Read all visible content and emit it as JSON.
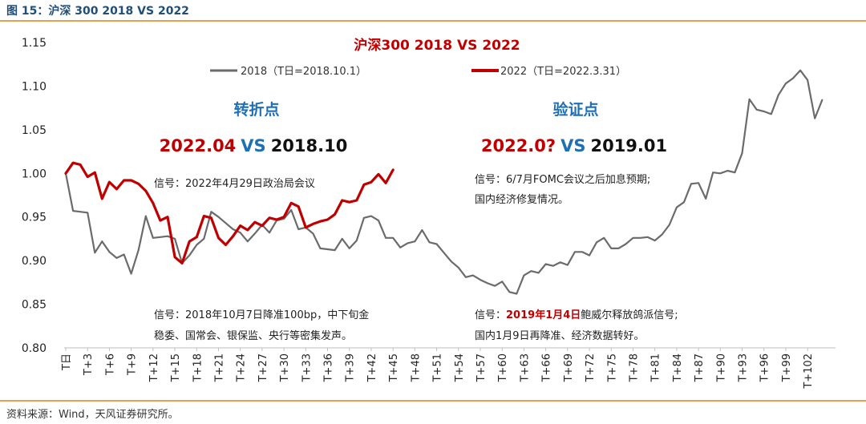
{
  "figure": {
    "title": "图 15：沪深 300 2018 VS 2022",
    "source": "资料来源：Wind，天风证券研究所。"
  },
  "colors": {
    "accent": "#e8a050",
    "s2018": "#6b6b6b",
    "s2022": "#c00000",
    "blue": "#1f6fb5"
  },
  "chart_data": {
    "type": "line",
    "title": "沪深300 2018 VS 2022",
    "xlabel": "",
    "ylabel": "",
    "ylim": [
      0.8,
      1.15
    ],
    "yticks": [
      "1.15",
      "1.10",
      "1.05",
      "1.00",
      "0.95",
      "0.90",
      "0.85",
      "0.80"
    ],
    "xticks": [
      {
        "i": 0,
        "label": "T日"
      },
      {
        "i": 3,
        "label": "T+3"
      },
      {
        "i": 6,
        "label": "T+6"
      },
      {
        "i": 9,
        "label": "T+9"
      },
      {
        "i": 12,
        "label": "T+12"
      },
      {
        "i": 15,
        "label": "T+15"
      },
      {
        "i": 18,
        "label": "T+18"
      },
      {
        "i": 21,
        "label": "T+21"
      },
      {
        "i": 24,
        "label": "T+24"
      },
      {
        "i": 27,
        "label": "T+27"
      },
      {
        "i": 30,
        "label": "T+30"
      },
      {
        "i": 33,
        "label": "T+33"
      },
      {
        "i": 36,
        "label": "T+36"
      },
      {
        "i": 39,
        "label": "T+39"
      },
      {
        "i": 42,
        "label": "T+42"
      },
      {
        "i": 45,
        "label": "T+45"
      },
      {
        "i": 48,
        "label": "T+48"
      },
      {
        "i": 51,
        "label": "T+51"
      },
      {
        "i": 54,
        "label": "T+54"
      },
      {
        "i": 57,
        "label": "T+57"
      },
      {
        "i": 60,
        "label": "T+60"
      },
      {
        "i": 63,
        "label": "T+63"
      },
      {
        "i": 66,
        "label": "T+66"
      },
      {
        "i": 69,
        "label": "T+69"
      },
      {
        "i": 72,
        "label": "T+72"
      },
      {
        "i": 75,
        "label": "T+75"
      },
      {
        "i": 78,
        "label": "T+78"
      },
      {
        "i": 81,
        "label": "T+81"
      },
      {
        "i": 84,
        "label": "T+84"
      },
      {
        "i": 87,
        "label": "T+87"
      },
      {
        "i": 90,
        "label": "T+90"
      },
      {
        "i": 93,
        "label": "T+93"
      },
      {
        "i": 96,
        "label": "T+96"
      },
      {
        "i": 99,
        "label": "T+99"
      },
      {
        "i": 102,
        "label": "T+102"
      }
    ],
    "series": [
      {
        "name": "2018（T日=2018.10.1）",
        "values": [
          1.0,
          0.957,
          0.956,
          0.955,
          0.909,
          0.922,
          0.91,
          0.903,
          0.907,
          0.885,
          0.912,
          0.951,
          0.926,
          0.927,
          0.928,
          0.925,
          0.897,
          0.906,
          0.918,
          0.925,
          0.956,
          0.95,
          0.943,
          0.936,
          0.932,
          0.922,
          0.931,
          0.941,
          0.932,
          0.946,
          0.948,
          0.958,
          0.936,
          0.938,
          0.931,
          0.914,
          0.913,
          0.912,
          0.925,
          0.914,
          0.923,
          0.949,
          0.951,
          0.946,
          0.926,
          0.926,
          0.915,
          0.92,
          0.922,
          0.935,
          0.921,
          0.919,
          0.909,
          0.899,
          0.892,
          0.881,
          0.883,
          0.878,
          0.874,
          0.871,
          0.876,
          0.864,
          0.862,
          0.883,
          0.888,
          0.886,
          0.896,
          0.894,
          0.898,
          0.895,
          0.91,
          0.91,
          0.906,
          0.921,
          0.926,
          0.914,
          0.914,
          0.919,
          0.926,
          0.926,
          0.927,
          0.923,
          0.93,
          0.941,
          0.961,
          0.967,
          0.988,
          0.989,
          0.971,
          1.001,
          1.0,
          1.003,
          1.001,
          1.023,
          1.085,
          1.073,
          1.071,
          1.068,
          1.09,
          1.103,
          1.109,
          1.118,
          1.107,
          1.063,
          1.084
        ]
      },
      {
        "name": "2022（T日=2022.3.31）",
        "values": [
          1.0,
          1.012,
          1.01,
          0.996,
          1.001,
          0.971,
          0.99,
          0.982,
          0.992,
          0.992,
          0.988,
          0.98,
          0.966,
          0.946,
          0.95,
          0.904,
          0.897,
          0.922,
          0.927,
          0.951,
          0.949,
          0.926,
          0.918,
          0.928,
          0.94,
          0.935,
          0.944,
          0.94,
          0.949,
          0.947,
          0.95,
          0.966,
          0.962,
          0.938,
          0.942,
          0.945,
          0.947,
          0.953,
          0.969,
          0.967,
          0.969,
          0.987,
          0.99,
          0.999,
          0.989,
          1.004
        ]
      }
    ]
  },
  "annotations": {
    "left_title": "转折点",
    "left_compare": {
      "a": "2022.04",
      "vs": "VS",
      "b": "2018.10"
    },
    "left_signal": "信号：2022年4月29日政治局会议",
    "left_bottom_line1": "信号：2018年10月7日降准100bp，中下旬金",
    "left_bottom_line2": "稳委、国常会、银保监、央行等密集发声。",
    "right_title": "验证点",
    "right_compare": {
      "a": "2022.0?",
      "vs": "VS",
      "b": "2019.01"
    },
    "right_signal_line1": "信号：6/7月FOMC会议之后加息预期;",
    "right_signal_line2": "国内经济修复情况。",
    "right_bottom_prefix": "信号：",
    "right_bottom_highlight": "2019年1月4日",
    "right_bottom_suffix": "鲍威尔释放鸽派信号;",
    "right_bottom_line2": "国内1月9日再降准、经济数据转好。"
  }
}
